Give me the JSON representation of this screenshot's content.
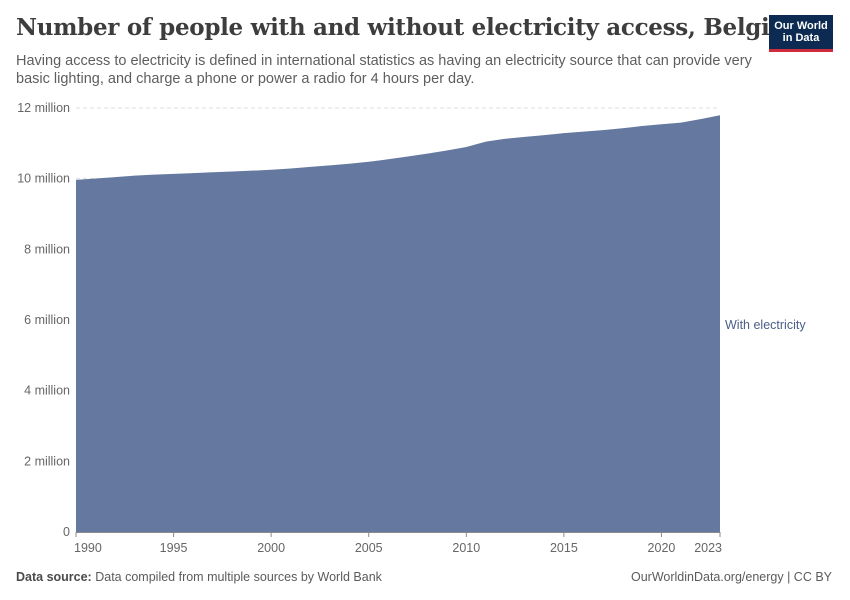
{
  "header": {
    "title": "Number of people with and without electricity access, Belgium",
    "subtitle": "Having access to electricity is defined in international statistics as having an electricity source that can provide very basic lighting, and charge a phone or power a radio for 4 hours per day.",
    "logo_line1": "Our World",
    "logo_line2": "in Data"
  },
  "footer": {
    "source_label": "Data source:",
    "source_text": "Data compiled from multiple sources by World Bank",
    "attribution": "OurWorldinData.org/energy | CC BY"
  },
  "colors": {
    "with_electricity": "#6579a0",
    "label_text": "#4c5e86",
    "logo_bg": "#0c2a52",
    "logo_accent": "#ce2b3e"
  },
  "chart_data": {
    "type": "area",
    "x": [
      1990,
      1991,
      1992,
      1993,
      1994,
      1995,
      1996,
      1997,
      1998,
      1999,
      2000,
      2001,
      2002,
      2003,
      2004,
      2005,
      2006,
      2007,
      2008,
      2009,
      2010,
      2011,
      2012,
      2013,
      2014,
      2015,
      2016,
      2017,
      2018,
      2019,
      2020,
      2021,
      2022,
      2023
    ],
    "series": [
      {
        "name": "With electricity",
        "values": [
          9967000,
          10004000,
          10045000,
          10085000,
          10116000,
          10137000,
          10157000,
          10181000,
          10203000,
          10226000,
          10251000,
          10287000,
          10333000,
          10376000,
          10421000,
          10479000,
          10548000,
          10626000,
          10710000,
          10796000,
          10896000,
          11048000,
          11128000,
          11183000,
          11231000,
          11288000,
          11331000,
          11375000,
          11427000,
          11489000,
          11539000,
          11587000,
          11686000,
          11794000
        ]
      }
    ],
    "ylim": [
      0,
      12000000
    ],
    "y_ticks": [
      0,
      2000000,
      4000000,
      6000000,
      8000000,
      10000000,
      12000000
    ],
    "y_tick_labels": [
      "0",
      "2 million",
      "4 million",
      "6 million",
      "8 million",
      "10 million",
      "12 million"
    ],
    "x_ticks": [
      1990,
      1995,
      2000,
      2005,
      2010,
      2015,
      2020,
      2023
    ],
    "x_tick_labels": [
      "1990",
      "1995",
      "2000",
      "2005",
      "2010",
      "2015",
      "2020",
      "2023"
    ],
    "grid": true,
    "legend": "right"
  }
}
